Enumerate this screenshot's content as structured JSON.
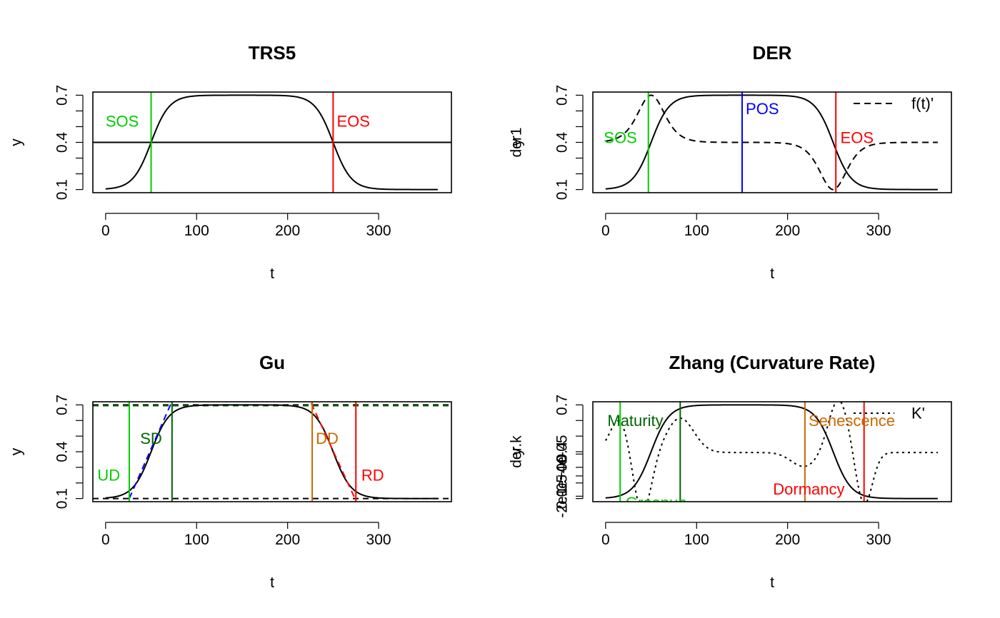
{
  "colors": {
    "green": "#00CD00",
    "darkgreen": "#006400",
    "blue": "#0000FF",
    "orange": "#CD6600",
    "red": "#FF0000",
    "black": "#000000"
  },
  "chart_data": [
    {
      "type": "line",
      "title": "TRS5",
      "xlabel": "t",
      "ylabel": "y",
      "xlim": [
        -14,
        380
      ],
      "ylim": [
        0.08,
        0.72
      ],
      "xticks": [
        "0",
        "100",
        "200",
        "300"
      ],
      "yticks": [
        "0.1",
        "0.4",
        "0.7"
      ],
      "curve": {
        "type": "double-logistic",
        "base": 0.1,
        "amp": 0.6,
        "sos": 50,
        "eos": 250,
        "rate": 0.1,
        "t_range": [
          0,
          365
        ]
      },
      "hlines": [
        {
          "y": 0.4,
          "style": "solid",
          "color": "black"
        }
      ],
      "vlines": [
        {
          "x": 50,
          "color": "green",
          "label": "SOS",
          "label_x": 0,
          "label_y": 0.535
        },
        {
          "x": 250,
          "color": "red",
          "label": "EOS",
          "label_x": 254,
          "label_y": 0.535
        }
      ]
    },
    {
      "type": "line",
      "title": "DER",
      "xlabel": "t",
      "ylabel": "y",
      "ylabel2": "der1",
      "xlim": [
        -14,
        380
      ],
      "ylim": [
        0.08,
        0.72
      ],
      "xticks": [
        "0",
        "100",
        "200",
        "300"
      ],
      "yticks": [
        "0.1",
        "0.4",
        "0.7"
      ],
      "curve": {
        "type": "double-logistic",
        "base": 0.1,
        "amp": 0.6,
        "sos": 50,
        "eos": 250,
        "rate": 0.1,
        "t_range": [
          0,
          365
        ]
      },
      "derivative": {
        "style": "dashed",
        "name": "f(t)'",
        "offset": 0.4,
        "scale": 20
      },
      "legend": {
        "position": "top-right",
        "entries": [
          "f(t)'"
        ]
      },
      "vlines": [
        {
          "x": 47,
          "color": "green",
          "label": "SOS",
          "label_x": -2,
          "label_y": 0.43
        },
        {
          "x": 150,
          "color": "blue",
          "label": "POS",
          "label_x": 154,
          "label_y": 0.615
        },
        {
          "x": 253,
          "color": "red",
          "label": "EOS",
          "label_x": 258,
          "label_y": 0.43
        }
      ]
    },
    {
      "type": "line",
      "title": "Gu",
      "xlabel": "t",
      "ylabel": "y",
      "xlim": [
        -14,
        380
      ],
      "ylim": [
        0.08,
        0.72
      ],
      "xticks": [
        "0",
        "100",
        "200",
        "300"
      ],
      "yticks": [
        "0.1",
        "0.4",
        "0.7"
      ],
      "curve": {
        "type": "double-logistic",
        "base": 0.1,
        "amp": 0.6,
        "sos": 50,
        "eos": 250,
        "rate": 0.1,
        "t_range": [
          0,
          365
        ]
      },
      "hlines": [
        {
          "y": 0.1,
          "style": "dashed",
          "color": "black"
        },
        {
          "y": 0.7,
          "style": "dashed",
          "color": "black"
        },
        {
          "y": 0.695,
          "style": "dashed",
          "color": "darkgreen"
        }
      ],
      "slopes": [
        {
          "x": [
            26,
            72
          ],
          "y": [
            0.1,
            0.71
          ],
          "color": "blue"
        },
        {
          "x": [
            226,
            274
          ],
          "y": [
            0.71,
            0.1
          ],
          "color": "red"
        }
      ],
      "vlines": [
        {
          "x": 26,
          "color": "green",
          "label": "UD",
          "label_x": -9,
          "label_y": 0.25
        },
        {
          "x": 73,
          "color": "darkgreen",
          "label": "SD",
          "label_x": 38,
          "label_y": 0.485
        },
        {
          "x": 227,
          "color": "orange",
          "label": "DD",
          "label_x": 231,
          "label_y": 0.485
        },
        {
          "x": 275,
          "color": "red",
          "label": "RD",
          "label_x": 281,
          "label_y": 0.25
        }
      ]
    },
    {
      "type": "line",
      "title": "Zhang (Curvature Rate)",
      "xlabel": "t",
      "ylabel": "y",
      "ylabel2": "der.k",
      "xlim": [
        -14,
        380
      ],
      "ylim": [
        0.08,
        0.72
      ],
      "xticks": [
        "0",
        "100",
        "200",
        "300"
      ],
      "yticks": [
        "0.1",
        "0.4",
        "0.7"
      ],
      "yticks2": [
        "-2e-05",
        "0e+00",
        "4e-05"
      ],
      "curve": {
        "type": "double-logistic",
        "base": 0.1,
        "amp": 0.6,
        "sos": 50,
        "eos": 250,
        "rate": 0.1,
        "t_range": [
          0,
          365
        ]
      },
      "curvature_rate": {
        "style": "dotted",
        "name": "K'"
      },
      "legend": {
        "position": "top-right",
        "entries": [
          "K'"
        ]
      },
      "vlines": [
        {
          "x": 16,
          "color": "green",
          "label": "Greenup",
          "label_x": 22,
          "label_y": 0.075
        },
        {
          "x": 82,
          "color": "darkgreen",
          "label": "Maturity",
          "label_x": 2,
          "label_y": 0.6
        },
        {
          "x": 219,
          "color": "orange",
          "label": "Senescence",
          "label_x": 223,
          "label_y": 0.6
        },
        {
          "x": 284,
          "color": "red",
          "label": "Dormancy",
          "label_x": 184,
          "label_y": 0.16
        }
      ]
    }
  ]
}
